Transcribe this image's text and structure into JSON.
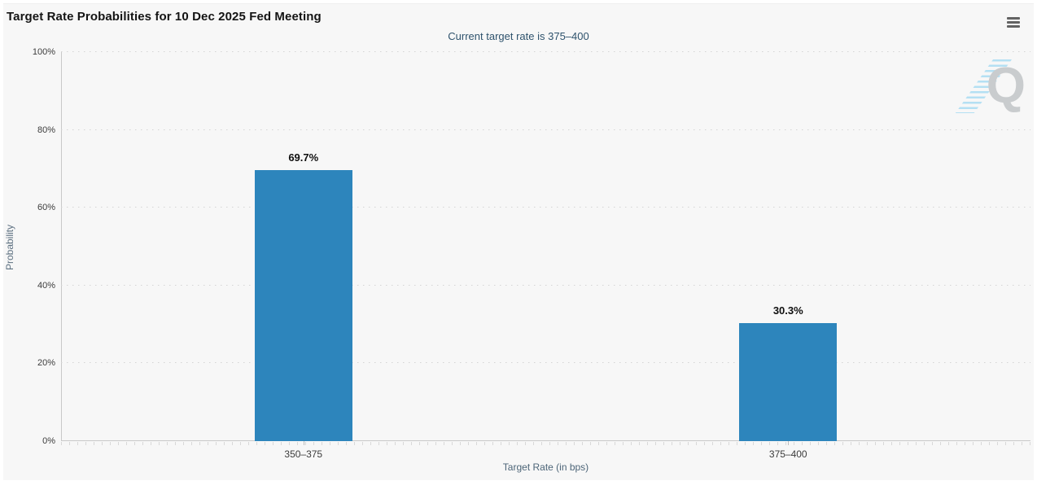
{
  "header": {
    "title": "Target Rate Probabilities for 10 Dec 2025 Fed Meeting",
    "subtitle": "Current target rate is 375–400",
    "menu_icon": "hamburger-icon"
  },
  "chart_data": {
    "type": "bar",
    "title": "Target Rate Probabilities for 10 Dec 2025 Fed Meeting",
    "subtitle": "Current target rate is 375–400",
    "categories": [
      "350–375",
      "375–400"
    ],
    "values": [
      69.7,
      30.3
    ],
    "data_labels": [
      "69.7%",
      "30.3%"
    ],
    "xlabel": "Target Rate (in bps)",
    "ylabel": "Probability",
    "ylim": [
      0,
      100
    ],
    "ytick_values": [
      0,
      20,
      40,
      60,
      80,
      100
    ],
    "ytick_labels": [
      "0%",
      "20%",
      "40%",
      "60%",
      "80%",
      "100%"
    ],
    "grid": true,
    "gridline_style": "dotted",
    "legend": "none",
    "bar_color": "#2d85bc",
    "background_color": "#f7f7f7",
    "watermark_letter": "Q"
  }
}
